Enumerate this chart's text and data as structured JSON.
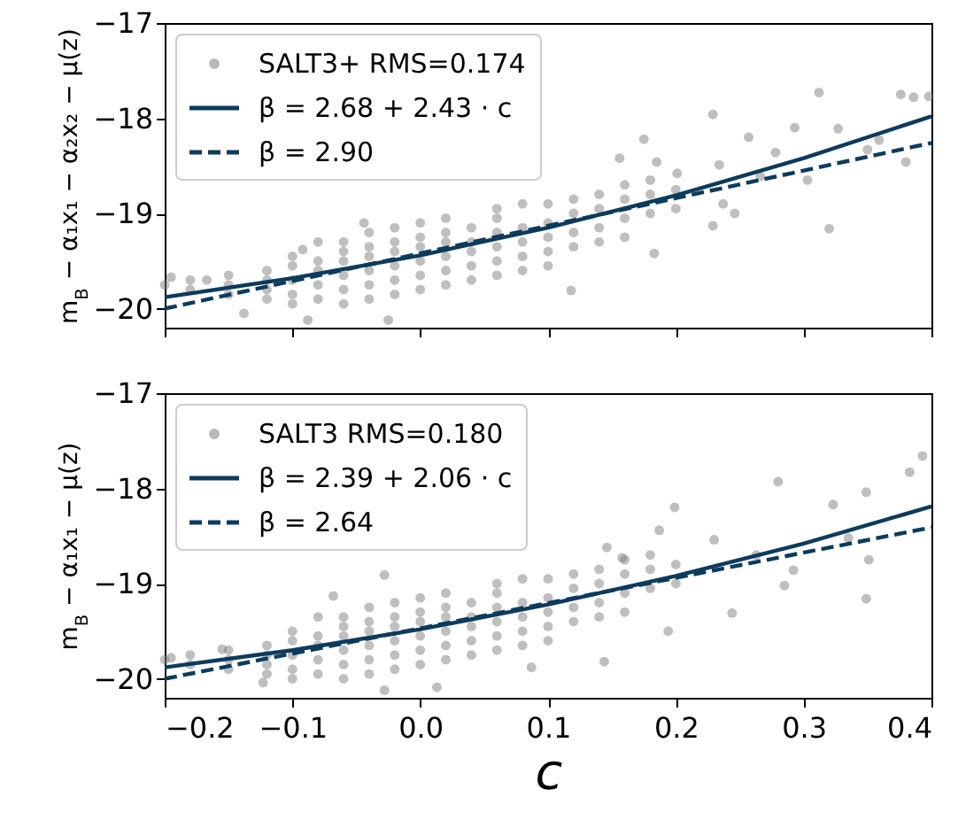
{
  "chart_data": [
    {
      "type": "scatter",
      "ylabel": "m$_{B}$ − α₁x₁ − α₂x₂ − μ(z)",
      "xlim": [
        -0.2,
        0.4
      ],
      "xticks": [
        -0.2,
        -0.1,
        0,
        0.1,
        0.2,
        0.3,
        0.4
      ],
      "ylim": [
        -20.2,
        -17
      ],
      "yticks": [
        -17,
        -18,
        -19,
        -20
      ],
      "tick_labels": "y",
      "grid": false,
      "legend": "top left",
      "series": [
        {
          "name": "SALT3+ RMS=0.174",
          "marker": "circle",
          "color": "#808080",
          "x": [
            -0.2,
            -0.18,
            -0.18,
            -0.15,
            -0.15,
            -0.15,
            -0.12,
            -0.12,
            -0.12,
            -0.12,
            -0.1,
            -0.1,
            -0.1,
            -0.1,
            -0.1,
            -0.08,
            -0.08,
            -0.08,
            -0.08,
            -0.08,
            -0.06,
            -0.06,
            -0.06,
            -0.06,
            -0.06,
            -0.06,
            -0.04,
            -0.04,
            -0.04,
            -0.04,
            -0.04,
            -0.04,
            -0.02,
            -0.02,
            -0.02,
            -0.02,
            -0.02,
            -0.02,
            0,
            0,
            0,
            0,
            0,
            0,
            0.02,
            0.02,
            0.02,
            0.02,
            0.02,
            0.02,
            0.04,
            0.04,
            0.04,
            0.04,
            0.04,
            0.06,
            0.06,
            0.06,
            0.06,
            0.06,
            0.06,
            0.08,
            0.08,
            0.08,
            0.08,
            0.08,
            0.1,
            0.1,
            0.1,
            0.1,
            0.1,
            0.12,
            0.12,
            0.12,
            0.12,
            0.14,
            0.14,
            0.14,
            0.14,
            0.16,
            0.16,
            0.16,
            0.16,
            0.18,
            0.18,
            0.18,
            0.2,
            0.2,
            0.312,
            0.376,
            0.398,
            0.386,
            0.229,
            0.175,
            0.257,
            0.293,
            0.327,
            0.38,
            0.303,
            0.32,
            0.183,
            0.229,
            0.246,
            0.118,
            -0.044,
            -0.092,
            -0.088,
            -0.025,
            -0.138,
            -0.195,
            -0.167,
            0.156,
            0.185,
            0.201,
            0.234,
            0.278,
            0.266,
            0.35,
            0.359,
            0.237
          ],
          "values": [
            -19.75,
            -19.8,
            -19.7,
            -19.75,
            -19.85,
            -19.65,
            -19.7,
            -19.8,
            -19.9,
            -19.6,
            -19.55,
            -19.7,
            -19.85,
            -19.95,
            -19.45,
            -19.6,
            -19.75,
            -19.5,
            -19.9,
            -19.3,
            -19.5,
            -19.65,
            -19.8,
            -19.4,
            -19.95,
            -19.3,
            -19.45,
            -19.6,
            -19.75,
            -19.35,
            -19.9,
            -19.2,
            -19.4,
            -19.55,
            -19.7,
            -19.3,
            -19.85,
            -19.15,
            -19.35,
            -19.5,
            -19.65,
            -19.25,
            -19.8,
            -19.1,
            -19.3,
            -19.45,
            -19.6,
            -19.2,
            -19.75,
            -19.05,
            -19.3,
            -19.4,
            -19.55,
            -19.15,
            -19.7,
            -19.2,
            -19.35,
            -19.5,
            -19.05,
            -19.65,
            -18.95,
            -19.15,
            -19.3,
            -19.45,
            -18.9,
            -19.6,
            -19.1,
            -19.25,
            -19.4,
            -18.9,
            -19.55,
            -19.0,
            -19.2,
            -19.35,
            -18.85,
            -18.95,
            -19.15,
            -19.3,
            -18.8,
            -18.85,
            -19.05,
            -19.25,
            -18.7,
            -18.8,
            -19.0,
            -18.65,
            -18.75,
            -18.95,
            -17.73,
            -17.75,
            -17.77,
            -17.78,
            -17.96,
            -18.22,
            -18.2,
            -18.1,
            -18.11,
            -18.46,
            -18.65,
            -19.16,
            -19.42,
            -19.13,
            -19.0,
            -19.81,
            -19.1,
            -19.38,
            -20.12,
            -20.12,
            -20.05,
            -19.67,
            -19.7,
            -18.42,
            -18.46,
            -18.58,
            -18.49,
            -18.36,
            -18.61,
            -18.33,
            -18.23,
            -18.9
          ]
        },
        {
          "name": "β = 2.68 + 2.43 · c",
          "type": "line",
          "line_style": "solid",
          "color": "#0c3b5c",
          "x": [
            -0.2,
            -0.1,
            0,
            0.1,
            0.2,
            0.3,
            0.4
          ],
          "values": [
            -19.88,
            -19.68,
            -19.44,
            -19.15,
            -18.81,
            -18.42,
            -17.98
          ]
        },
        {
          "name": "β = 2.90",
          "type": "line",
          "line_style": "dashed",
          "color": "#0c3b5c",
          "x": [
            -0.2,
            0.4
          ],
          "values": [
            -20.0,
            -18.26
          ]
        }
      ]
    },
    {
      "type": "scatter",
      "xlabel": "c",
      "ylabel": "m$_{B}$ − α₁x₁ − μ(z)",
      "xlim": [
        -0.2,
        0.4
      ],
      "xticks": [
        -0.2,
        -0.1,
        {
          "value": 0,
          "label": "0.0"
        },
        0.1,
        0.2,
        0.3,
        0.4
      ],
      "ylim": [
        -20.2,
        -17
      ],
      "yticks": [
        -17,
        -18,
        -19,
        -20
      ],
      "grid": false,
      "legend": "top left",
      "series": [
        {
          "name": "SALT3 RMS=0.180",
          "marker": "circle",
          "color": "#808080",
          "x": [
            -0.2,
            -0.18,
            -0.18,
            -0.15,
            -0.15,
            -0.15,
            -0.12,
            -0.12,
            -0.12,
            -0.12,
            -0.1,
            -0.1,
            -0.1,
            -0.1,
            -0.1,
            -0.08,
            -0.08,
            -0.08,
            -0.08,
            -0.08,
            -0.06,
            -0.06,
            -0.06,
            -0.06,
            -0.06,
            -0.06,
            -0.04,
            -0.04,
            -0.04,
            -0.04,
            -0.04,
            -0.04,
            -0.02,
            -0.02,
            -0.02,
            -0.02,
            -0.02,
            -0.02,
            0,
            0,
            0,
            0,
            0,
            0,
            0.02,
            0.02,
            0.02,
            0.02,
            0.02,
            0.02,
            0.04,
            0.04,
            0.04,
            0.04,
            0.04,
            0.06,
            0.06,
            0.06,
            0.06,
            0.06,
            0.06,
            0.08,
            0.08,
            0.08,
            0.08,
            0.08,
            0.1,
            0.1,
            0.1,
            0.1,
            0.1,
            0.12,
            0.12,
            0.12,
            0.12,
            0.14,
            0.14,
            0.14,
            0.14,
            0.16,
            0.16,
            0.16,
            0.16,
            0.18,
            0.18,
            0.18,
            0.2,
            0.2,
            0.393,
            0.383,
            0.28,
            0.199,
            0.323,
            0.349,
            0.335,
            0.351,
            0.349,
            0.244,
            0.194,
            0.144,
            0.087,
            -0.028,
            0.013,
            -0.123,
            -0.028,
            -0.068,
            0.146,
            0.158,
            0.187,
            0.23,
            0.263,
            0.292,
            0.285,
            -0.195,
            -0.155
          ],
          "values": [
            -19.8,
            -19.85,
            -19.75,
            -19.8,
            -19.9,
            -19.7,
            -19.75,
            -19.85,
            -19.95,
            -19.65,
            -19.6,
            -19.75,
            -19.9,
            -20.0,
            -19.5,
            -19.65,
            -19.8,
            -19.55,
            -19.95,
            -19.35,
            -19.55,
            -19.7,
            -19.85,
            -19.45,
            -20.0,
            -19.35,
            -19.5,
            -19.65,
            -19.8,
            -19.4,
            -19.95,
            -19.25,
            -19.45,
            -19.6,
            -19.75,
            -19.35,
            -19.9,
            -19.2,
            -19.4,
            -19.55,
            -19.7,
            -19.3,
            -19.85,
            -19.15,
            -19.35,
            -19.5,
            -19.65,
            -19.25,
            -19.8,
            -19.1,
            -19.35,
            -19.45,
            -19.6,
            -19.2,
            -19.75,
            -19.25,
            -19.4,
            -19.55,
            -19.1,
            -19.7,
            -19.0,
            -19.2,
            -19.35,
            -19.5,
            -18.95,
            -19.65,
            -19.15,
            -19.3,
            -19.45,
            -18.95,
            -19.6,
            -19.05,
            -19.25,
            -19.4,
            -18.9,
            -19.0,
            -19.2,
            -19.35,
            -18.85,
            -18.9,
            -19.1,
            -19.3,
            -18.75,
            -18.85,
            -19.05,
            -18.7,
            -18.8,
            -19.0,
            -17.66,
            -17.83,
            -17.93,
            -18.2,
            -18.17,
            -18.04,
            -18.52,
            -18.75,
            -19.16,
            -19.31,
            -19.5,
            -19.82,
            -19.88,
            -20.12,
            -20.09,
            -20.04,
            -18.91,
            -19.13,
            -18.62,
            -18.73,
            -18.44,
            -18.54,
            -18.7,
            -18.86,
            -19.02,
            -19.78,
            -19.69
          ]
        },
        {
          "name": "β = 2.39 + 2.06 · c",
          "type": "line",
          "line_style": "solid",
          "color": "#0c3b5c",
          "x": [
            -0.2,
            -0.1,
            0,
            0.1,
            0.2,
            0.3,
            0.4
          ],
          "values": [
            -19.88,
            -19.7,
            -19.48,
            -19.22,
            -18.92,
            -18.58,
            -18.19
          ]
        },
        {
          "name": "β = 2.64",
          "type": "line",
          "line_style": "dashed",
          "color": "#0c3b5c",
          "x": [
            -0.2,
            0.4
          ],
          "values": [
            -20.0,
            -18.41
          ]
        }
      ]
    }
  ]
}
